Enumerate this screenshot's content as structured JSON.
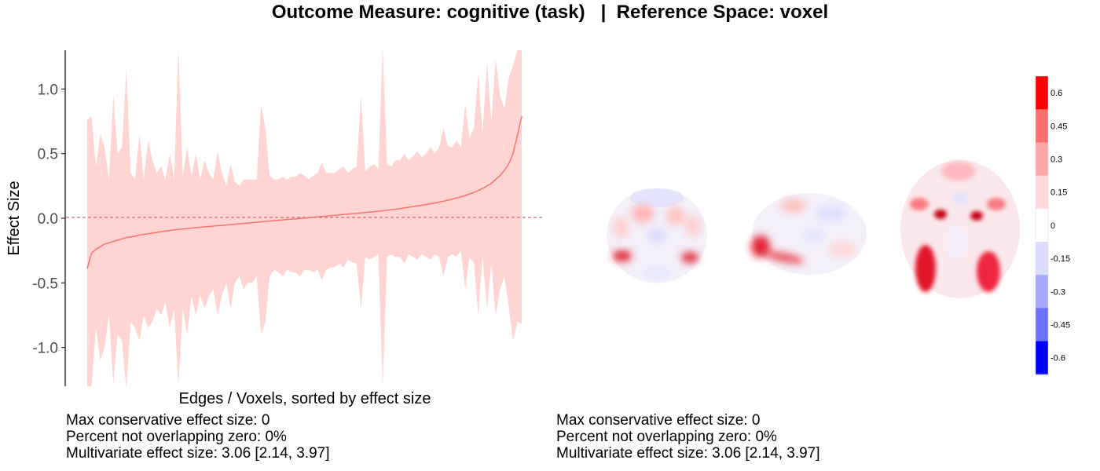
{
  "title": "Outcome Measure: cognitive (task)   |  Reference Space: voxel",
  "chart_data": {
    "type": "area",
    "ylabel": "Effect Size",
    "xlabel": "Edges / Voxels, sorted by effect size",
    "ylim": [
      -1.3,
      1.3
    ],
    "yticks": [
      1.0,
      0.5,
      0.0,
      -0.5,
      -1.0
    ],
    "ytick_labels": [
      "1.0",
      "0.5",
      "0.0",
      "-0.5",
      "-1.0"
    ],
    "zero_line": 0,
    "series": [
      {
        "values": [
          -0.39,
          -0.27,
          -0.24,
          -0.22,
          -0.2,
          -0.19,
          -0.18,
          -0.17,
          -0.16,
          -0.15,
          -0.145,
          -0.14,
          -0.13,
          -0.125,
          -0.12,
          -0.115,
          -0.11,
          -0.105,
          -0.1,
          -0.095,
          -0.09,
          -0.087,
          -0.083,
          -0.08,
          -0.076,
          -0.073,
          -0.07,
          -0.067,
          -0.064,
          -0.061,
          -0.058,
          -0.055,
          -0.052,
          -0.049,
          -0.046,
          -0.043,
          -0.04,
          -0.037,
          -0.034,
          -0.031,
          -0.028,
          -0.025,
          -0.022,
          -0.019,
          -0.016,
          -0.013,
          -0.01,
          -0.007,
          -0.004,
          -0.001,
          0.002,
          0.005,
          0.008,
          0.011,
          0.014,
          0.017,
          0.02,
          0.023,
          0.026,
          0.029,
          0.032,
          0.035,
          0.038,
          0.041,
          0.044,
          0.047,
          0.05,
          0.054,
          0.058,
          0.062,
          0.066,
          0.07,
          0.075,
          0.08,
          0.085,
          0.09,
          0.095,
          0.1,
          0.106,
          0.112,
          0.118,
          0.125,
          0.132,
          0.14,
          0.148,
          0.157,
          0.166,
          0.176,
          0.187,
          0.2,
          0.214,
          0.23,
          0.25,
          0.27,
          0.3,
          0.33,
          0.37,
          0.42,
          0.5,
          0.64,
          0.79
        ],
        "ci_upper": [
          0.76,
          0.79,
          0.4,
          0.65,
          0.55,
          0.3,
          0.95,
          0.5,
          0.55,
          1.15,
          0.35,
          0.3,
          0.65,
          0.3,
          0.6,
          0.45,
          0.35,
          0.4,
          0.3,
          0.5,
          0.3,
          1.32,
          0.32,
          0.55,
          0.33,
          0.5,
          0.3,
          0.45,
          0.35,
          0.3,
          0.52,
          0.35,
          0.25,
          0.42,
          0.28,
          0.25,
          0.3,
          0.3,
          0.3,
          0.3,
          0.88,
          0.7,
          0.33,
          0.3,
          0.3,
          0.32,
          0.3,
          0.32,
          0.32,
          0.35,
          0.33,
          0.3,
          0.33,
          0.35,
          0.43,
          0.35,
          0.35,
          0.35,
          0.38,
          0.4,
          0.35,
          0.38,
          0.4,
          0.95,
          0.36,
          0.4,
          0.42,
          0.38,
          1.32,
          0.42,
          0.4,
          0.45,
          0.45,
          0.5,
          0.45,
          0.48,
          0.52,
          0.47,
          0.5,
          0.55,
          0.5,
          0.55,
          0.7,
          0.56,
          0.55,
          0.6,
          0.55,
          0.88,
          0.62,
          0.7,
          1.12,
          0.65,
          1.2,
          0.75,
          1.23,
          0.95,
          0.85,
          1.08,
          1.18,
          1.3,
          1.3
        ],
        "ci_lower": [
          -1.32,
          -1.3,
          -0.85,
          -1.1,
          -1.0,
          -0.75,
          -1.28,
          -0.9,
          -0.95,
          -1.32,
          -0.8,
          -0.85,
          -0.95,
          -0.75,
          -0.85,
          -0.8,
          -0.7,
          -0.75,
          -0.65,
          -0.85,
          -0.7,
          -1.3,
          -0.7,
          -0.9,
          -0.6,
          -0.75,
          -0.6,
          -0.7,
          -0.6,
          -0.55,
          -0.75,
          -0.6,
          -0.5,
          -0.7,
          -0.5,
          -0.45,
          -0.55,
          -0.5,
          -0.5,
          -0.45,
          -0.9,
          -0.8,
          -0.45,
          -0.4,
          -0.42,
          -0.45,
          -0.4,
          -0.42,
          -0.42,
          -0.45,
          -0.4,
          -0.4,
          -0.42,
          -0.4,
          -0.48,
          -0.4,
          -0.38,
          -0.38,
          -0.35,
          -0.38,
          -0.32,
          -0.34,
          -0.35,
          -0.7,
          -0.3,
          -0.32,
          -0.3,
          -0.28,
          -1.3,
          -0.3,
          -0.28,
          -0.3,
          -0.3,
          -0.35,
          -0.28,
          -0.3,
          -0.32,
          -0.28,
          -0.3,
          -0.32,
          -0.28,
          -0.3,
          -0.45,
          -0.3,
          -0.28,
          -0.3,
          -0.25,
          -0.55,
          -0.3,
          -0.35,
          -0.75,
          -0.3,
          -0.7,
          -0.35,
          -0.75,
          -0.55,
          -0.45,
          -0.68,
          -0.95,
          -0.8,
          -0.82
        ]
      }
    ],
    "line_color": "#f8766d",
    "ribbon_color": "#ffd4d2",
    "colorbar": {
      "labels": [
        "0.6",
        "0.45",
        "0.3",
        "0.15",
        "0",
        "-0.15",
        "-0.3",
        "-0.45",
        "-0.6"
      ],
      "colors": [
        "#ff0000",
        "#ff6f6f",
        "#ffa8a8",
        "#ffdada",
        "#ffffff",
        "#dcdcff",
        "#a8a8ff",
        "#6f6fff",
        "#0000ff"
      ]
    }
  },
  "brain_slices": [
    "coronal",
    "sagittal",
    "axial"
  ],
  "stats_left": [
    "Max conservative effect size: 0",
    "Percent not overlapping zero: 0%",
    "Multivariate effect size: 3.06 [2.14, 3.97]"
  ],
  "stats_right": [
    "Max conservative effect size: 0",
    "Percent not overlapping zero: 0%",
    "Multivariate effect size: 3.06 [2.14, 3.97]"
  ]
}
